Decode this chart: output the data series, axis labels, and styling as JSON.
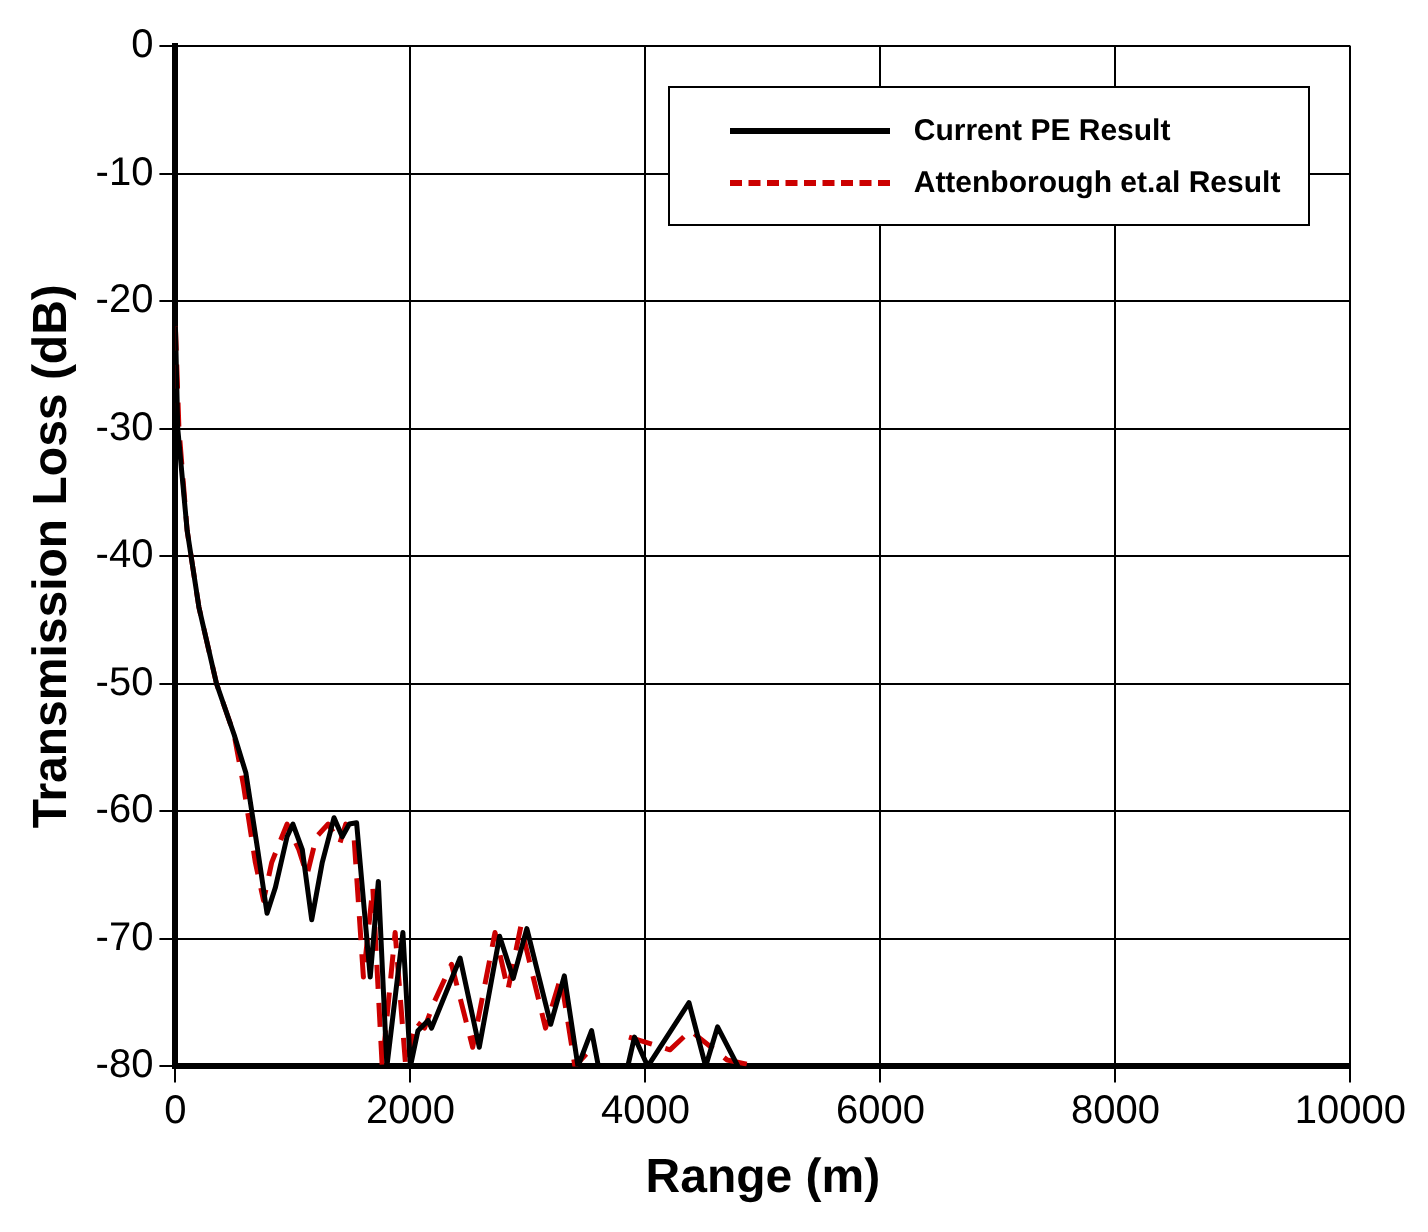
{
  "chart_data": {
    "type": "line",
    "xlabel": "Range (m)",
    "ylabel": "Transmission Loss (dB)",
    "xlim": [
      0,
      10000
    ],
    "xticks": [
      0,
      2000,
      4000,
      6000,
      8000,
      10000
    ],
    "ylim": [
      -80,
      0
    ],
    "yticks": [
      -80,
      -70,
      -60,
      -50,
      -40,
      -30,
      -20,
      -10,
      0
    ],
    "grid": true,
    "legend": "top right",
    "marker": "none",
    "series": [
      {
        "name": "Current PE Result",
        "color": "#000000",
        "line_style": "solid",
        "x": [
          0,
          20,
          100,
          200,
          350,
          500,
          600,
          700,
          780,
          850,
          950,
          1000,
          1080,
          1160,
          1250,
          1350,
          1420,
          1480,
          1542,
          1658,
          1727,
          1800,
          1936,
          2000,
          2064,
          2151,
          2180,
          2423,
          2586,
          2759,
          2875,
          2991,
          3194,
          3310,
          3426,
          3542,
          3600,
          3700,
          3850,
          3907,
          4020,
          4371,
          4513,
          4614,
          4788
        ],
        "values": [
          -22,
          -30,
          -38,
          -44,
          -50,
          -54,
          -57,
          -63,
          -68,
          -66,
          -62,
          -61,
          -63,
          -68.5,
          -64,
          -60.5,
          -62,
          -61,
          -60.9,
          -73,
          -65.5,
          -80,
          -69.5,
          -80,
          -77.2,
          -76.4,
          -77,
          -71.5,
          -78.5,
          -69.8,
          -73.1,
          -69.2,
          -76.7,
          -72.9,
          -80,
          -77.2,
          -80,
          null,
          -80,
          -77.7,
          -80,
          -75,
          -80,
          -76.9,
          -80
        ]
      },
      {
        "name": "Attenborough et.al Result",
        "color": "#cc0000",
        "line_style": "dashed",
        "x": [
          0,
          30,
          100,
          200,
          350,
          500,
          580,
          680,
          750,
          820,
          950,
          1050,
          1120,
          1200,
          1300,
          1400,
          1450,
          1520,
          1600,
          1680,
          1760,
          1870,
          1960,
          2050,
          2120,
          2200,
          2350,
          2530,
          2720,
          2830,
          2940,
          3150,
          3280,
          3400,
          3500,
          3700,
          3860,
          4209,
          4383,
          4696,
          4957
        ],
        "values": [
          -22,
          -30,
          -38,
          -44,
          -50,
          -54,
          -58,
          -64,
          -67,
          -64,
          -61,
          -63,
          -65,
          -62,
          -61,
          -62.5,
          -61,
          -62,
          -73,
          -66,
          -80,
          -69.5,
          -80,
          -76.5,
          -77,
          -75,
          -72,
          -78.5,
          -69.5,
          -74,
          -69,
          -77,
          -73,
          -80,
          -79,
          null,
          -77.7,
          -78.7,
          -77.2,
          -79.5,
          -80
        ]
      }
    ]
  }
}
